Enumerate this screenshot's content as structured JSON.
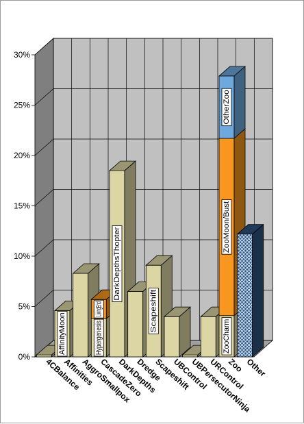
{
  "chart_data": {
    "type": "bar",
    "stacked": true,
    "three_d": true,
    "y_unit": "%",
    "ylim": [
      0,
      30
    ],
    "yticks": [
      0,
      5,
      10,
      15,
      20,
      25,
      30
    ],
    "ytick_labels": [
      "0%",
      "5%",
      "10%",
      "15%",
      "20%",
      "25%",
      "30%"
    ],
    "grid": true,
    "categories": [
      "4CBalance",
      "Affinities",
      "AggroSmallpox",
      "CascadeZero",
      "DarkDepths",
      "Dredge",
      "Scapeshift",
      "UBControl",
      "UBPersecutorNinja",
      "URControl",
      "Zoo",
      "Other"
    ],
    "bars": [
      {
        "category": "4CBalance",
        "segments": [
          {
            "value": 0.2,
            "label": "",
            "color": "#dcd6a4"
          }
        ]
      },
      {
        "category": "Affinities",
        "segments": [
          {
            "value": 4.6,
            "label": "AffinityMoon",
            "color": "#dcd6a4"
          }
        ]
      },
      {
        "category": "AggroSmallpox",
        "segments": [
          {
            "value": 8.3,
            "label": "",
            "color": "#dcd6a4"
          }
        ]
      },
      {
        "category": "CascadeZero",
        "segments": [
          {
            "value": 3.8,
            "label": "Hypergenesis",
            "color": "#dcd6a4"
          },
          {
            "value": 1.9,
            "label": "LivingEnd",
            "color": "#f7971f"
          }
        ]
      },
      {
        "category": "DarkDepths",
        "segments": [
          {
            "value": 18.5,
            "label": "DarkDepthsThopter",
            "color": "#dcd6a4"
          }
        ]
      },
      {
        "category": "Dredge",
        "segments": [
          {
            "value": 6.5,
            "label": "",
            "color": "#dcd6a4"
          }
        ]
      },
      {
        "category": "Scapeshift",
        "segments": [
          {
            "value": 9.1,
            "label": "Scapeshift",
            "color": "#dcd6a4"
          }
        ]
      },
      {
        "category": "UBControl",
        "segments": [
          {
            "value": 4.0,
            "label": "",
            "color": "#dcd6a4"
          }
        ]
      },
      {
        "category": "UBPersecutorNinja",
        "segments": [
          {
            "value": 0.2,
            "label": "",
            "color": "#dcd6a4"
          }
        ]
      },
      {
        "category": "URControl",
        "segments": [
          {
            "value": 4.0,
            "label": "",
            "color": "#dcd6a4"
          }
        ]
      },
      {
        "category": "Zoo",
        "segments": [
          {
            "value": 4.1,
            "label": "ZooCharm",
            "color": "#dcd6a4"
          },
          {
            "value": 17.6,
            "label": "ZooMoon/Bust",
            "color": "#f7971f"
          },
          {
            "value": 6.2,
            "label": "OtherZoo",
            "color": "#6fa8dc"
          }
        ]
      },
      {
        "category": "Other",
        "segments": [
          {
            "value": 12.2,
            "label": "",
            "color": "#2e5580",
            "pattern": "crosshatch"
          }
        ]
      }
    ],
    "colors": {
      "wall": "#c0c0c0",
      "left_wall": "#7f7f7f",
      "floor": "#a0a0a0",
      "grid": "#000000"
    }
  }
}
